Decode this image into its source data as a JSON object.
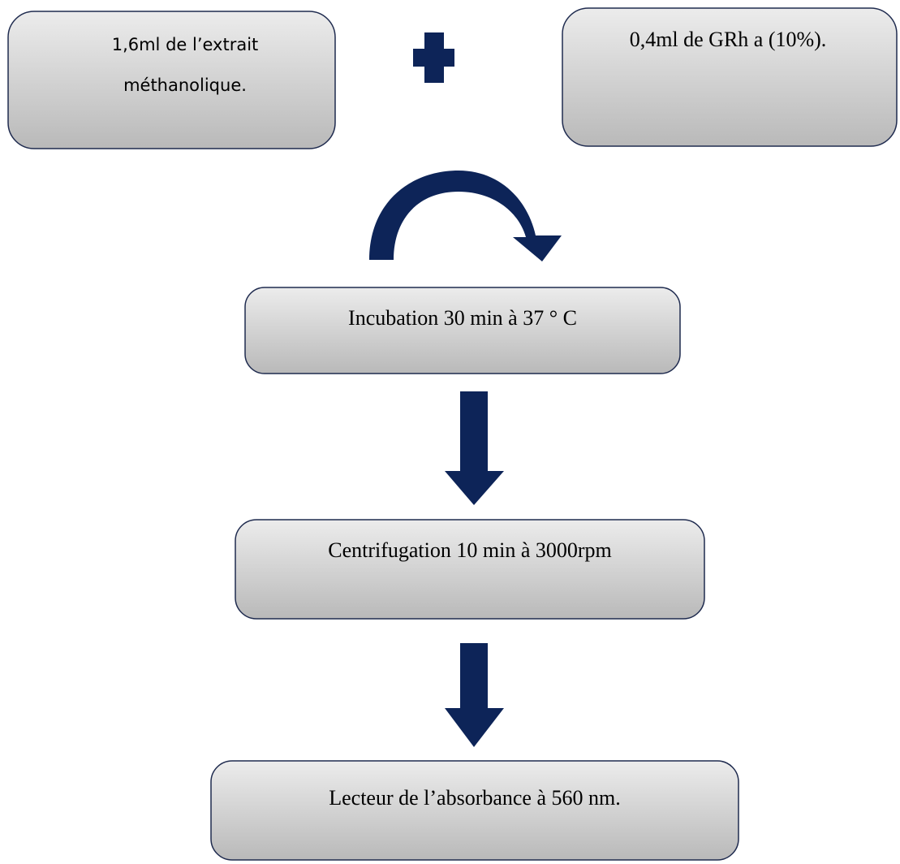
{
  "nodes": [
    {
      "lines": [
        "1,6ml de l’extrait",
        "méthanolique."
      ]
    },
    {
      "label": "0,4ml de GRh a (10%)."
    },
    {
      "label": "Incubation 30 min à 37 ° C"
    },
    {
      "label": "Centrifugation 10 min à 3000rpm"
    },
    {
      "label": "Lecteur de l’absorbance à 560 nm."
    }
  ]
}
